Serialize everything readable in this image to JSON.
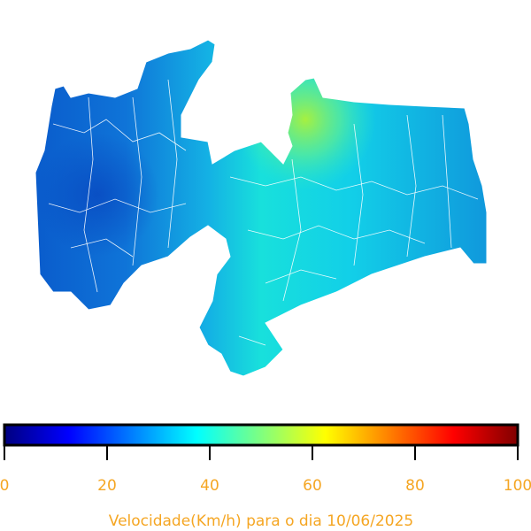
{
  "map": {
    "colorbar": {
      "colormap": "jet",
      "lim": [
        0,
        100
      ],
      "ticks": [
        0,
        20,
        40,
        60,
        80,
        100
      ],
      "label": "Velocidade(Km/h) para o dia 10/06/2025"
    }
  }
}
